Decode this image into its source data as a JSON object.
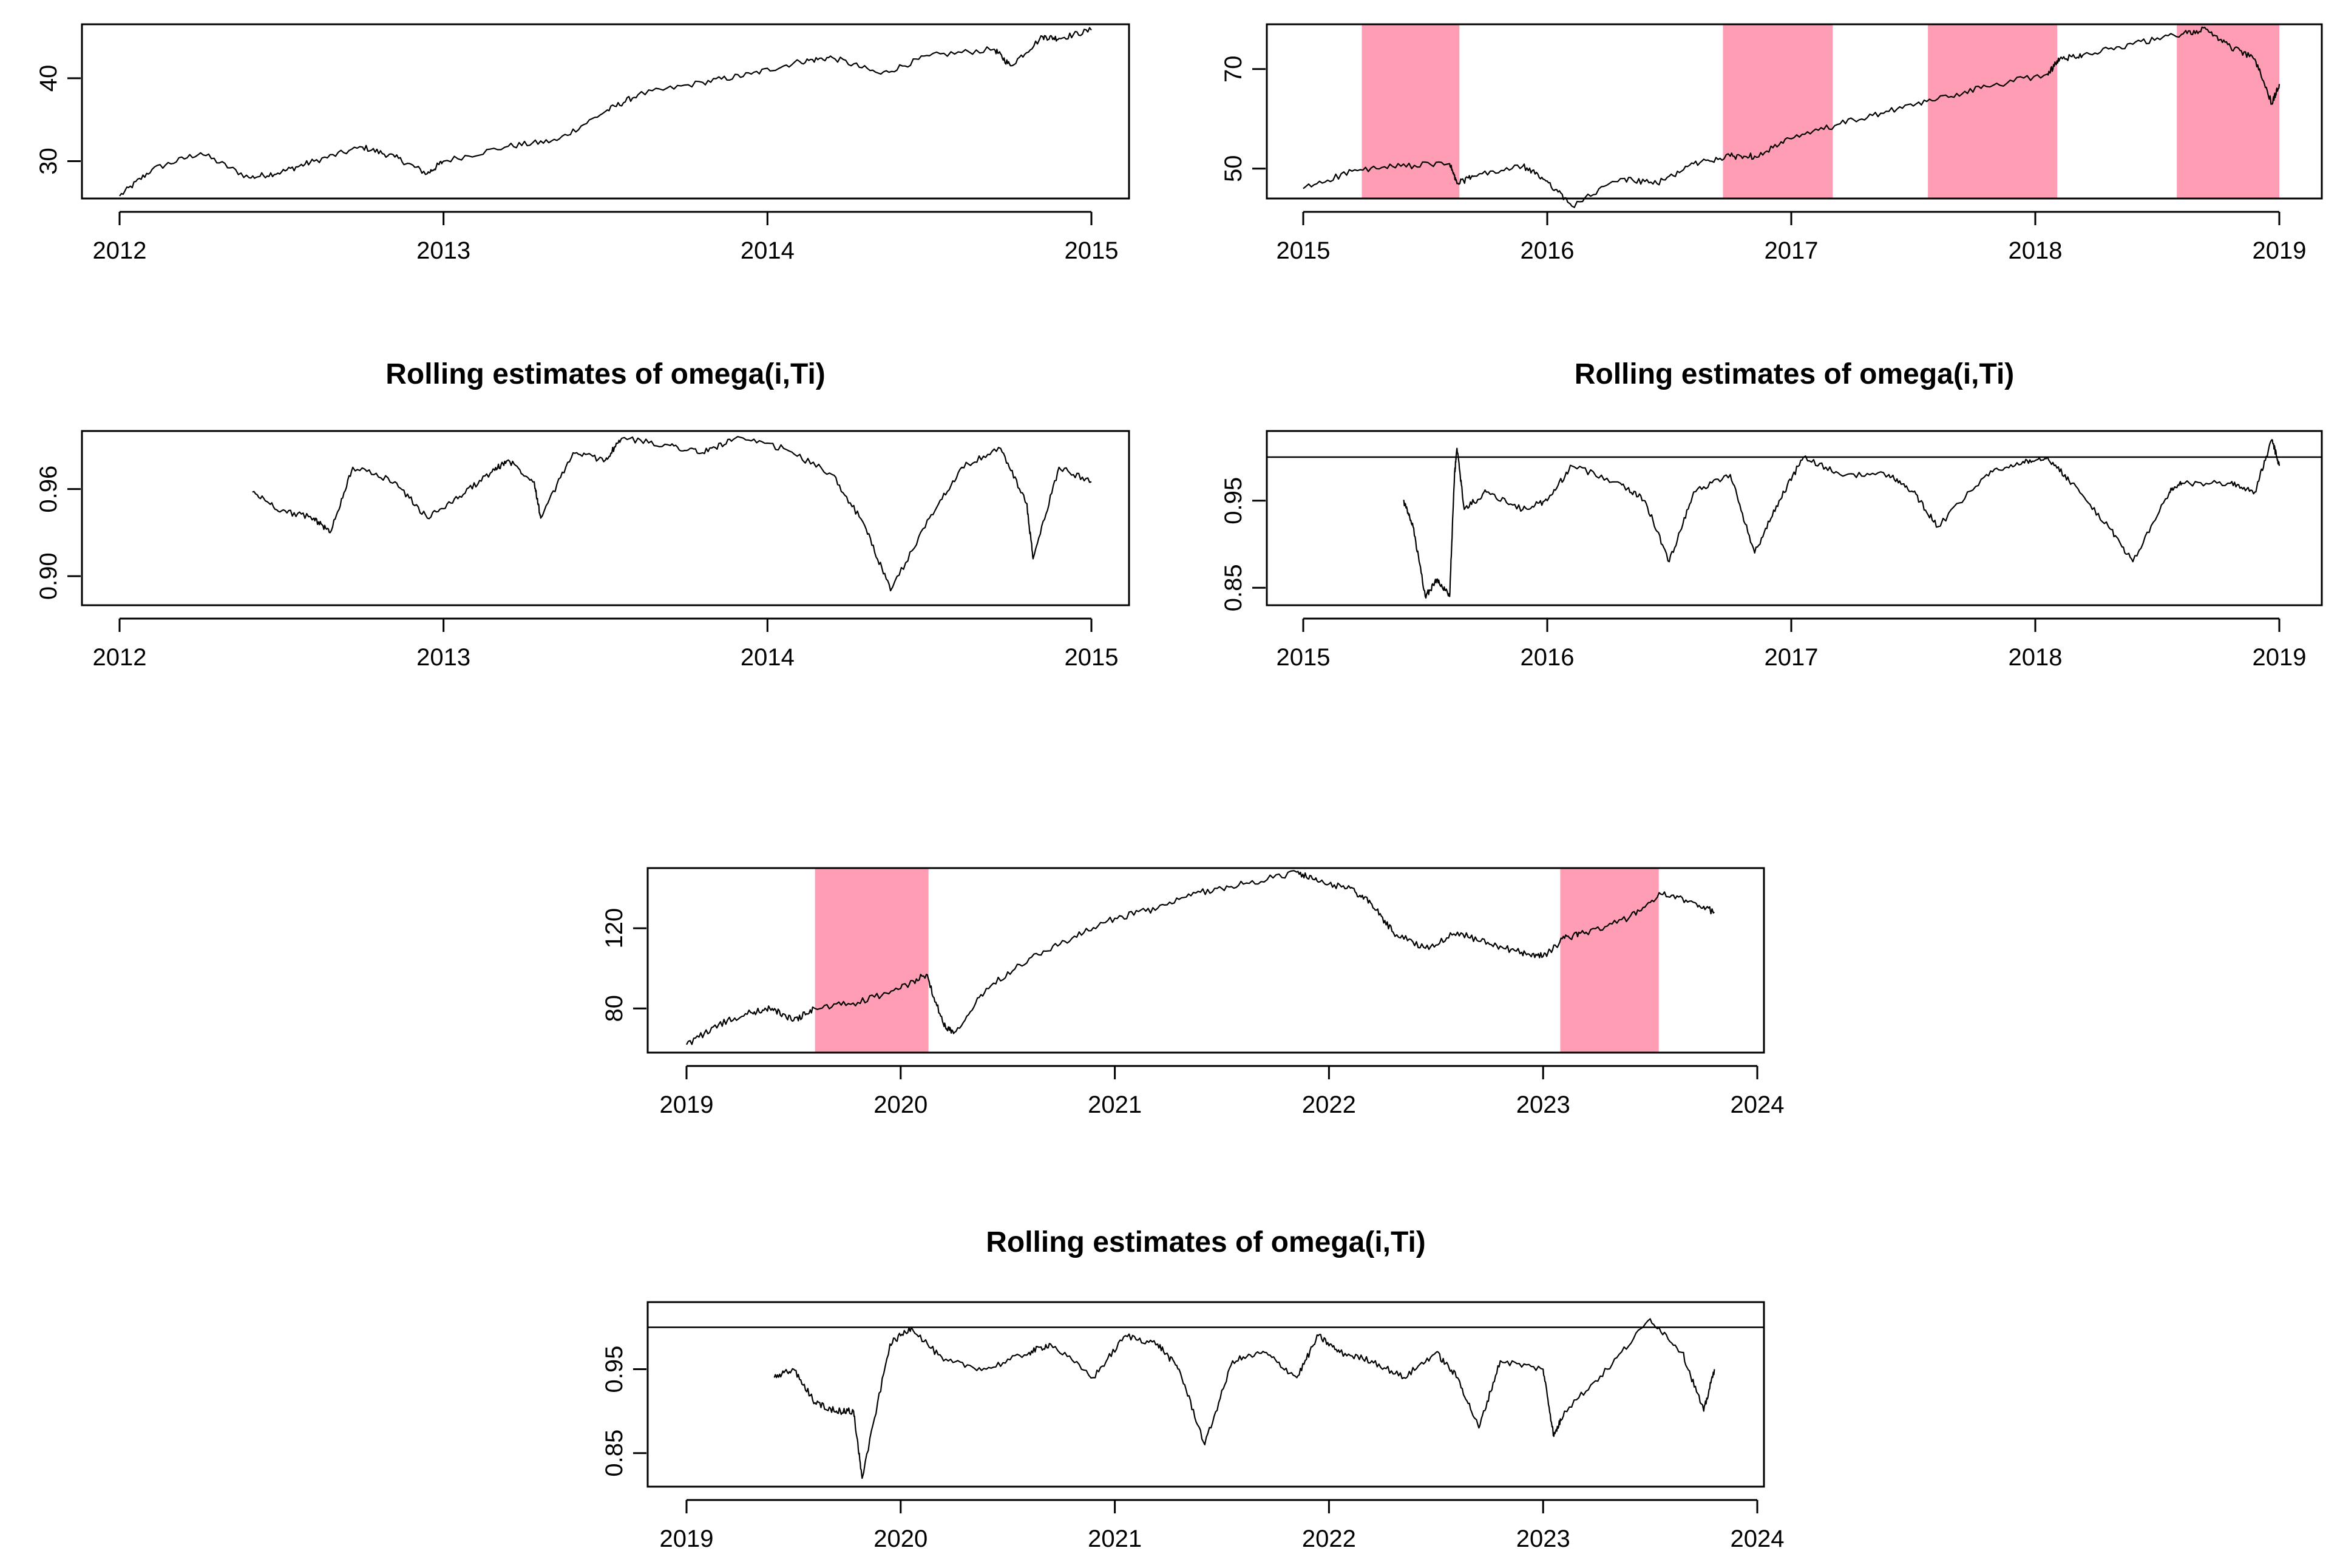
{
  "chart_data": [
    {
      "id": "p1",
      "type": "line",
      "title": "",
      "xlim": [
        2012.0,
        2015.0
      ],
      "ylim": [
        25.5,
        46.5
      ],
      "x_ticks": [
        2012,
        2013,
        2014,
        2015
      ],
      "y_ticks": [
        30,
        40
      ],
      "shaded_regions": [],
      "reference_line": null,
      "series": [
        {
          "x": [
            2012.0,
            2012.1,
            2012.25,
            2012.4,
            2012.5,
            2012.6,
            2012.75,
            2012.85,
            2012.95,
            2013.0,
            2013.2,
            2013.35,
            2013.5,
            2013.6,
            2013.8,
            2013.95,
            2014.1,
            2014.2,
            2014.35,
            2014.5,
            2014.7,
            2014.75,
            2014.85,
            2014.9,
            2015.0
          ],
          "y": [
            25.8,
            29.0,
            31.0,
            28.0,
            28.7,
            30.0,
            31.7,
            30.5,
            28.5,
            30.0,
            31.8,
            32.5,
            36.0,
            38.0,
            39.5,
            40.5,
            42.0,
            42.5,
            40.5,
            42.7,
            43.5,
            41.5,
            45.0,
            44.8,
            45.8
          ]
        }
      ]
    },
    {
      "id": "p2",
      "type": "line",
      "title": "",
      "xlim": [
        2015.0,
        2019.0
      ],
      "ylim": [
        44.0,
        79.0
      ],
      "x_ticks": [
        2015,
        2016,
        2017,
        2018,
        2019
      ],
      "y_ticks": [
        50,
        70
      ],
      "shaded_regions": [
        [
          2015.24,
          2015.64
        ],
        [
          2016.72,
          2017.17
        ],
        [
          2017.56,
          2018.09
        ],
        [
          2018.58,
          2019.0
        ]
      ],
      "reference_line": null,
      "series": [
        {
          "x": [
            2015.0,
            2015.2,
            2015.4,
            2015.6,
            2015.63,
            2015.7,
            2015.9,
            2016.0,
            2016.1,
            2016.3,
            2016.45,
            2016.6,
            2016.75,
            2016.85,
            2017.0,
            2017.2,
            2017.4,
            2017.6,
            2017.8,
            2018.05,
            2018.1,
            2018.2,
            2018.4,
            2018.6,
            2018.7,
            2018.8,
            2018.9,
            2018.97,
            2019.0
          ],
          "y": [
            46.0,
            49.5,
            50.5,
            51.0,
            47.0,
            48.5,
            50.5,
            47.5,
            42.5,
            48.0,
            47.0,
            51.0,
            52.5,
            52.5,
            56.0,
            59.0,
            61.5,
            64.0,
            66.5,
            69.0,
            72.0,
            73.0,
            75.0,
            77.0,
            78.0,
            74.5,
            72.0,
            63.0,
            67.0
          ]
        }
      ]
    },
    {
      "id": "p3",
      "type": "line",
      "title": "Rolling estimates of omega(i,Ti)",
      "xlim": [
        2012.0,
        2015.0
      ],
      "ylim": [
        0.88,
        1.0
      ],
      "x_ticks": [
        2012,
        2013,
        2014,
        2015
      ],
      "y_ticks": [
        0.9,
        0.96
      ],
      "shaded_regions": [],
      "reference_line": 1.0,
      "series": [
        {
          "x": [
            2012.41,
            2012.5,
            2012.6,
            2012.65,
            2012.72,
            2012.85,
            2012.95,
            2013.05,
            2013.15,
            2013.2,
            2013.28,
            2013.3,
            2013.4,
            2013.5,
            2013.55,
            2013.7,
            2013.8,
            2013.9,
            2014.05,
            2014.2,
            2014.3,
            2014.38,
            2014.5,
            2014.6,
            2014.72,
            2014.8,
            2014.82,
            2014.9,
            2015.0
          ],
          "y": [
            0.958,
            0.945,
            0.94,
            0.93,
            0.975,
            0.965,
            0.94,
            0.955,
            0.972,
            0.98,
            0.965,
            0.94,
            0.985,
            0.98,
            0.995,
            0.99,
            0.985,
            0.995,
            0.988,
            0.97,
            0.935,
            0.89,
            0.94,
            0.975,
            0.988,
            0.95,
            0.912,
            0.975,
            0.965
          ]
        }
      ]
    },
    {
      "id": "p4",
      "type": "line",
      "title": "Rolling estimates of omega(i,Ti)",
      "xlim": [
        2015.0,
        2019.0
      ],
      "ylim": [
        0.83,
        1.03
      ],
      "x_ticks": [
        2015,
        2016,
        2017,
        2018,
        2019
      ],
      "y_ticks": [
        0.85,
        0.95
      ],
      "shaded_regions": [],
      "reference_line": 1.0,
      "series": [
        {
          "x": [
            2015.41,
            2015.45,
            2015.5,
            2015.55,
            2015.6,
            2015.62,
            2015.63,
            2015.66,
            2015.75,
            2015.9,
            2016.0,
            2016.1,
            2016.3,
            2016.4,
            2016.5,
            2016.6,
            2016.75,
            2016.85,
            2016.95,
            2017.05,
            2017.2,
            2017.4,
            2017.5,
            2017.6,
            2017.8,
            2017.95,
            2018.05,
            2018.15,
            2018.3,
            2018.4,
            2018.55,
            2018.6,
            2018.8,
            2018.9,
            2018.97,
            2019.0
          ],
          "y": [
            0.95,
            0.92,
            0.84,
            0.86,
            0.84,
            0.98,
            1.01,
            0.94,
            0.96,
            0.94,
            0.95,
            0.99,
            0.97,
            0.95,
            0.88,
            0.96,
            0.98,
            0.89,
            0.95,
            1.0,
            0.98,
            0.98,
            0.96,
            0.92,
            0.98,
            0.995,
            1.0,
            0.97,
            0.92,
            0.88,
            0.96,
            0.97,
            0.97,
            0.96,
            1.02,
            0.99
          ]
        }
      ]
    },
    {
      "id": "p5",
      "type": "line",
      "title": "",
      "xlim": [
        2019.0,
        2024.0
      ],
      "ylim": [
        58.0,
        150.0
      ],
      "x_ticks": [
        2019,
        2020,
        2021,
        2022,
        2023,
        2024
      ],
      "y_ticks": [
        80,
        120
      ],
      "shaded_regions": [
        [
          2019.6,
          2020.13
        ],
        [
          2023.08,
          2023.54
        ]
      ],
      "reference_line": null,
      "series": [
        {
          "x": [
            2019.0,
            2019.15,
            2019.3,
            2019.4,
            2019.5,
            2019.6,
            2019.8,
            2020.0,
            2020.12,
            2020.2,
            2020.25,
            2020.4,
            2020.6,
            2020.8,
            2021.0,
            2021.2,
            2021.4,
            2021.6,
            2021.85,
            2021.95,
            2022.1,
            2022.2,
            2022.3,
            2022.45,
            2022.6,
            2022.75,
            2022.9,
            2023.0,
            2023.1,
            2023.2,
            2023.4,
            2023.55,
            2023.7,
            2023.8
          ],
          "y": [
            62.0,
            72.0,
            78.0,
            80.0,
            74.0,
            80.0,
            83.0,
            90.0,
            97.0,
            72.0,
            68.0,
            90.0,
            105.0,
            115.0,
            125.0,
            130.0,
            138.0,
            142.0,
            148.0,
            143.0,
            140.0,
            132.0,
            118.0,
            110.0,
            118.0,
            112.0,
            108.0,
            106.0,
            115.0,
            118.0,
            125.0,
            137.0,
            133.0,
            128.0
          ]
        }
      ]
    },
    {
      "id": "p6",
      "type": "line",
      "title": "Rolling estimates of omega(i,Ti)",
      "xlim": [
        2019.0,
        2024.0
      ],
      "ylim": [
        0.81,
        1.03
      ],
      "x_ticks": [
        2019,
        2020,
        2021,
        2022,
        2023,
        2024
      ],
      "y_ticks": [
        0.85,
        0.95
      ],
      "shaded_regions": [],
      "reference_line": 1.0,
      "series": [
        {
          "x": [
            2019.41,
            2019.5,
            2019.6,
            2019.7,
            2019.78,
            2019.82,
            2019.95,
            2020.05,
            2020.2,
            2020.4,
            2020.6,
            2020.7,
            2020.9,
            2021.05,
            2021.2,
            2021.3,
            2021.42,
            2021.55,
            2021.7,
            2021.85,
            2021.95,
            2022.05,
            2022.2,
            2022.35,
            2022.5,
            2022.6,
            2022.7,
            2022.8,
            2023.0,
            2023.05,
            2023.1,
            2023.3,
            2023.5,
            2023.65,
            2023.75,
            2023.8
          ],
          "y": [
            0.94,
            0.95,
            0.91,
            0.9,
            0.9,
            0.82,
            0.98,
            1.0,
            0.96,
            0.95,
            0.97,
            0.98,
            0.94,
            0.99,
            0.98,
            0.95,
            0.86,
            0.96,
            0.97,
            0.94,
            0.99,
            0.97,
            0.96,
            0.94,
            0.97,
            0.94,
            0.88,
            0.96,
            0.95,
            0.87,
            0.9,
            0.95,
            1.01,
            0.97,
            0.9,
            0.95
          ]
        }
      ]
    }
  ]
}
